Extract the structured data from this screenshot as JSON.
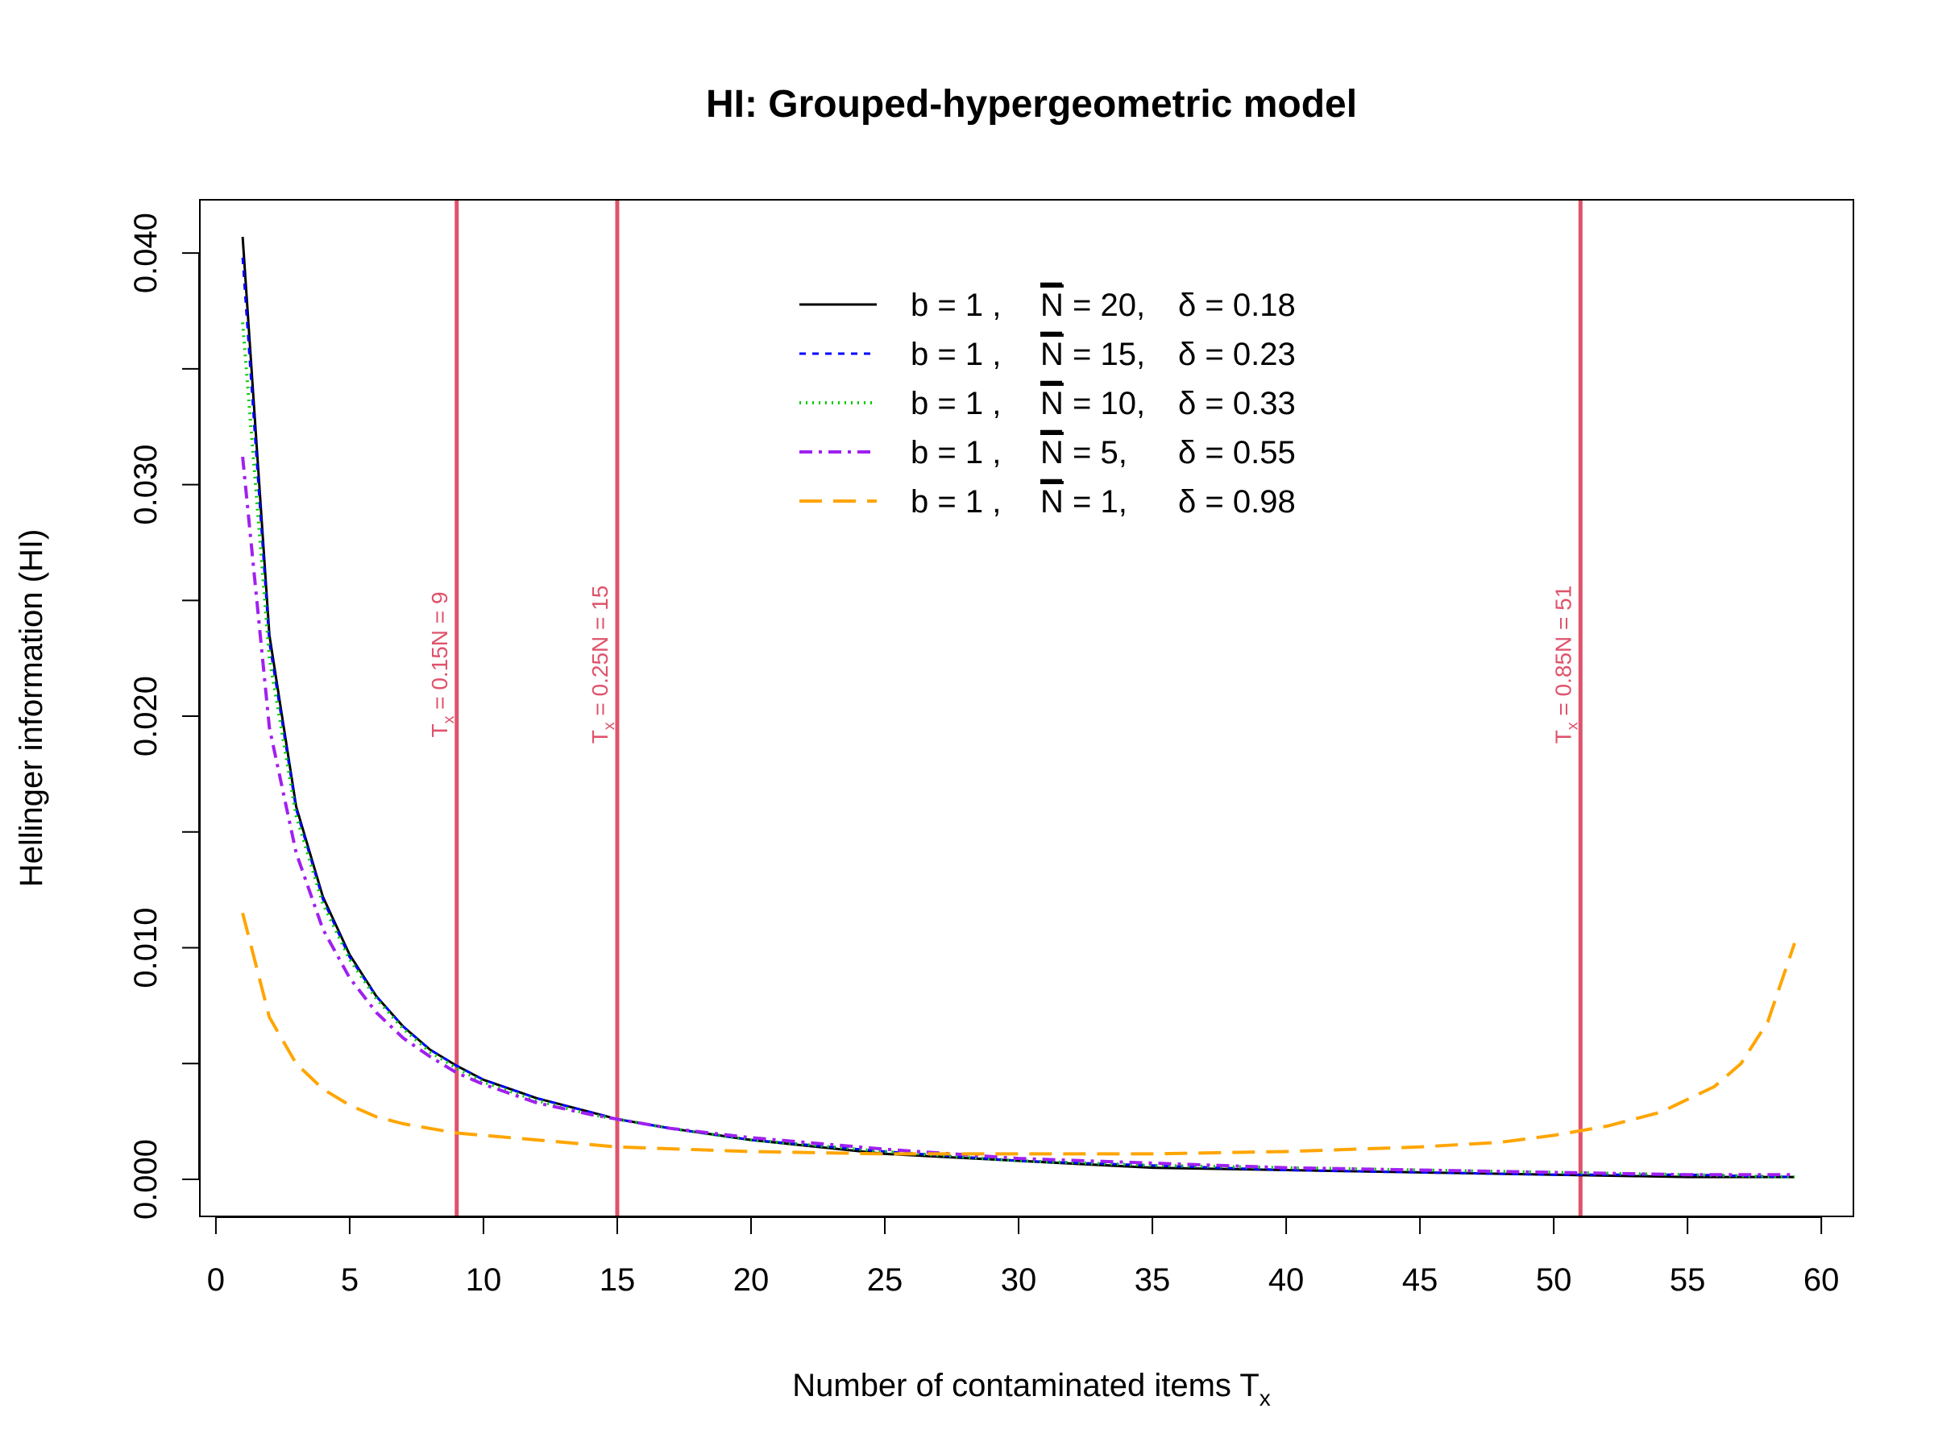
{
  "chart_data": {
    "type": "line",
    "title": "HI: Grouped-hypergeometric model",
    "xlabel": {
      "main": "Number of contaminated items T",
      "sub": "x"
    },
    "ylabel": "Hellinger information (HI)",
    "xlim": [
      -0.6,
      61.2
    ],
    "ylim": [
      -0.0016,
      0.0423
    ],
    "xticks": [
      0,
      5,
      10,
      15,
      20,
      25,
      30,
      35,
      40,
      45,
      50,
      55,
      60
    ],
    "xtick_labels": [
      "0",
      "5",
      "10",
      "15",
      "20",
      "25",
      "30",
      "35",
      "40",
      "45",
      "50",
      "55",
      "60"
    ],
    "yticks": [
      0,
      0.005,
      0.01,
      0.015,
      0.02,
      0.025,
      0.03,
      0.035,
      0.04
    ],
    "ytick_labels": [
      "0.000",
      "",
      "0.010",
      "",
      "0.020",
      "",
      "0.030",
      "",
      "0.040"
    ],
    "grid": false,
    "legend_position": "top-center",
    "vlines": [
      {
        "x": 9,
        "color": "#DF536B",
        "label": {
          "pre": "T",
          "sub": "x",
          "post": " = 0.15N  = 9"
        }
      },
      {
        "x": 15,
        "color": "#DF536B",
        "label": {
          "pre": "T",
          "sub": "x",
          "post": " = 0.25N  = 15"
        }
      },
      {
        "x": 51,
        "color": "#DF536B",
        "label": {
          "pre": "T",
          "sub": "x",
          "post": " = 0.85N  = 51"
        }
      }
    ],
    "series": [
      {
        "name": "b = 1 ,  N = 20,  δ = 0.18",
        "legend": {
          "b": "b = 1 ,",
          "n": "N",
          "n_val": " = 20,",
          "delta": "δ = 0.18"
        },
        "color": "#000000",
        "dash": "",
        "width": 3,
        "x": [
          1,
          2,
          3,
          4,
          5,
          6,
          7,
          8,
          9,
          10,
          12,
          14,
          15,
          17,
          20,
          25,
          30,
          35,
          40,
          45,
          50,
          55,
          59
        ],
        "y": [
          0.0407,
          0.0235,
          0.0161,
          0.0122,
          0.0097,
          0.0079,
          0.0066,
          0.0056,
          0.0049,
          0.0043,
          0.0035,
          0.0029,
          0.0026,
          0.0022,
          0.0017,
          0.0011,
          0.0008,
          0.0005,
          0.0004,
          0.0003,
          0.0002,
          0.0001,
          0.0001
        ]
      },
      {
        "name": "b = 1 ,  N = 15,  δ = 0.23",
        "legend": {
          "b": "b = 1 ,",
          "n": "N",
          "n_val": " = 15,",
          "delta": "δ = 0.23"
        },
        "color": "#0000FF",
        "dash": "8,8",
        "width": 3,
        "x": [
          1,
          2,
          3,
          4,
          5,
          6,
          7,
          8,
          9,
          10,
          12,
          14,
          15,
          17,
          20,
          25,
          30,
          35,
          40,
          45,
          50,
          55,
          59
        ],
        "y": [
          0.0398,
          0.0232,
          0.016,
          0.0121,
          0.0096,
          0.0079,
          0.0066,
          0.0056,
          0.0049,
          0.0043,
          0.0035,
          0.0029,
          0.0026,
          0.0022,
          0.0017,
          0.0012,
          0.0008,
          0.0006,
          0.0004,
          0.0003,
          0.0002,
          0.0002,
          0.0001
        ]
      },
      {
        "name": "b = 1 ,  N = 10,  δ = 0.33",
        "legend": {
          "b": "b = 1 ,",
          "n": "N",
          "n_val": " = 10,",
          "delta": "δ = 0.33"
        },
        "color": "#00CD00",
        "dash": "2,6",
        "width": 4,
        "x": [
          1,
          2,
          3,
          4,
          5,
          6,
          7,
          8,
          9,
          10,
          12,
          14,
          15,
          17,
          20,
          25,
          30,
          35,
          40,
          45,
          50,
          55,
          59
        ],
        "y": [
          0.037,
          0.0225,
          0.0157,
          0.0119,
          0.0095,
          0.0078,
          0.0065,
          0.0055,
          0.0048,
          0.0042,
          0.0034,
          0.0028,
          0.0026,
          0.0022,
          0.0017,
          0.0012,
          0.0008,
          0.0006,
          0.0005,
          0.0004,
          0.0003,
          0.0002,
          0.0001
        ]
      },
      {
        "name": "b = 1 ,  N = 5,  δ = 0.55",
        "legend": {
          "b": "b = 1 ,",
          "n": "N",
          "n_val": " = 5,",
          "delta": "δ = 0.55"
        },
        "color": "#A020F0",
        "dash": "16,8,4,8",
        "width": 4,
        "x": [
          1,
          2,
          3,
          4,
          5,
          6,
          7,
          8,
          9,
          10,
          12,
          14,
          15,
          17,
          20,
          25,
          30,
          35,
          40,
          45,
          50,
          55,
          59
        ],
        "y": [
          0.0312,
          0.0195,
          0.0141,
          0.0108,
          0.0087,
          0.0072,
          0.0061,
          0.0053,
          0.0046,
          0.0041,
          0.0033,
          0.0028,
          0.0026,
          0.0022,
          0.0018,
          0.0013,
          0.0009,
          0.0007,
          0.0005,
          0.0004,
          0.0003,
          0.0002,
          0.0002
        ]
      },
      {
        "name": "b = 1 ,  N = 1,  δ = 0.98",
        "legend": {
          "b": "b = 1 ,",
          "n": "N",
          "n_val": " = 1,",
          "delta": "δ = 0.98"
        },
        "color": "#FFA500",
        "dash": "28,14",
        "width": 4,
        "x": [
          1,
          2,
          3,
          4,
          5,
          6,
          7,
          8,
          9,
          10,
          12,
          15,
          20,
          25,
          30,
          35,
          40,
          45,
          48,
          50,
          52,
          54,
          56,
          57,
          58,
          59
        ],
        "y": [
          0.0115,
          0.007,
          0.005,
          0.0039,
          0.0032,
          0.0027,
          0.0024,
          0.0022,
          0.002,
          0.0019,
          0.0017,
          0.0014,
          0.0012,
          0.0011,
          0.0011,
          0.0011,
          0.0012,
          0.0014,
          0.0016,
          0.0019,
          0.0023,
          0.0029,
          0.004,
          0.005,
          0.0068,
          0.0102
        ]
      }
    ]
  }
}
